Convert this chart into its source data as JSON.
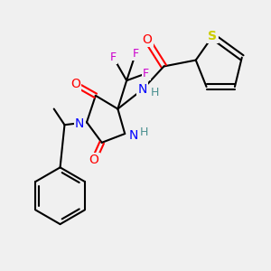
{
  "bg_color": "#f0f0f0",
  "atom_colors": {
    "C": "#000000",
    "N": "#0000ff",
    "O": "#ff0000",
    "F": "#cc00cc",
    "S": "#cccc00",
    "H": "#4a9090",
    "bond": "#000000"
  },
  "figsize": [
    3.0,
    3.0
  ],
  "dpi": 100
}
